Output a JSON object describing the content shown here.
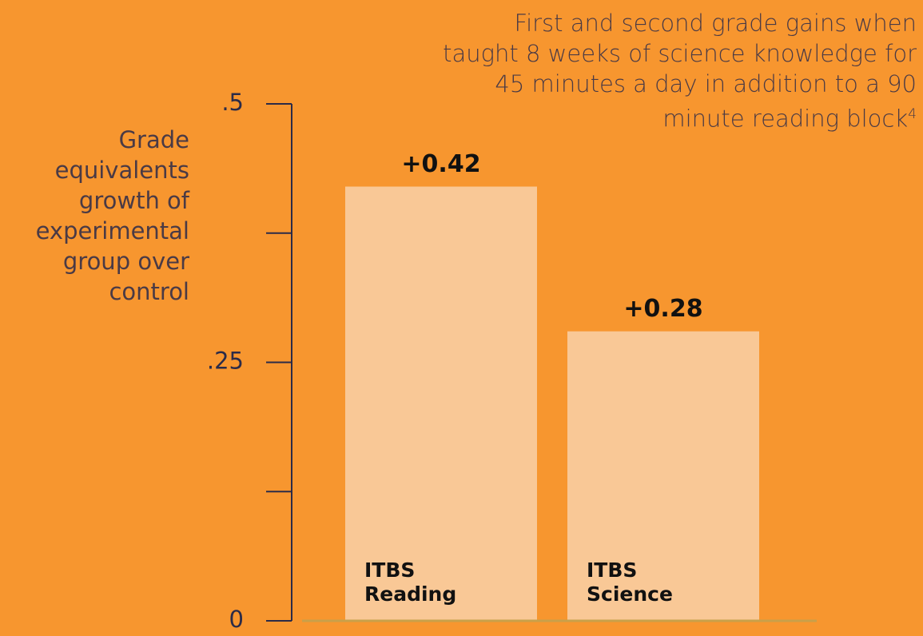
{
  "chart_data": {
    "type": "bar",
    "title": "First and second grade gains when taught 8 weeks of science knowledge for 45 minutes a day in addition to a 90 minute reading block",
    "title_footnote": "4",
    "y_label": "Grade equivalents growth of experimental group over control",
    "categories": [
      "ITBS Reading",
      "ITBS Science"
    ],
    "values": [
      0.42,
      0.28
    ],
    "value_labels": [
      "+0.42",
      "+0.28"
    ],
    "color": "#f9c896",
    "ylim": [
      0,
      0.5
    ],
    "yticks": [
      0,
      {
        "value": 0.25,
        "label": ".25"
      },
      {
        "value": 0.5,
        "label": ".5"
      }
    ],
    "minor_yticks": [
      0.125,
      0.375
    ]
  }
}
